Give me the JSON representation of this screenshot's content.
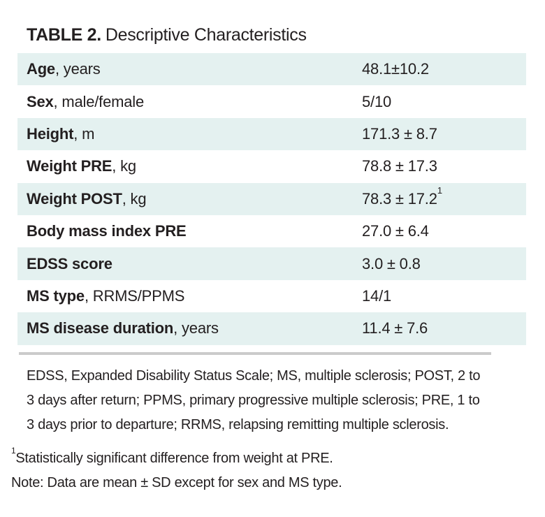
{
  "title": {
    "label": "TABLE 2.",
    "text": "Descriptive Characteristics"
  },
  "table": {
    "rows": [
      {
        "label_bold": "Age",
        "label_rest": ", years",
        "value": "48.1±10.2",
        "value_sup": ""
      },
      {
        "label_bold": "Sex",
        "label_rest": ", male/female",
        "value": "5/10",
        "value_sup": ""
      },
      {
        "label_bold": "Height",
        "label_rest": ", m",
        "value": "171.3 ± 8.7",
        "value_sup": ""
      },
      {
        "label_bold": "Weight PRE",
        "label_rest": ", kg",
        "value": "78.8 ± 17.3",
        "value_sup": ""
      },
      {
        "label_bold": "Weight POST",
        "label_rest": ", kg",
        "value": "78.3 ± 17.2",
        "value_sup": "1"
      },
      {
        "label_bold": "Body mass index PRE",
        "label_rest": "",
        "value": "27.0 ± 6.4",
        "value_sup": ""
      },
      {
        "label_bold": "EDSS score",
        "label_rest": "",
        "value": "3.0 ± 0.8",
        "value_sup": ""
      },
      {
        "label_bold": "MS type",
        "label_rest": ", RRMS/PPMS",
        "value": "14/1",
        "value_sup": ""
      },
      {
        "label_bold": "MS disease duration",
        "label_rest": ", years",
        "value": "11.4 ± 7.6",
        "value_sup": ""
      }
    ]
  },
  "footnotes": {
    "abbreviations_lines": [
      "EDSS, Expanded Disability Status Scale; MS, multiple sclerosis; POST, 2 to",
      "3 days after return; PPMS, primary progressive multiple sclerosis; PRE, 1 to",
      "3 days prior to departure; RRMS, relapsing remitting multiple sclerosis."
    ],
    "significance_sup": "1",
    "significance": "Statistically significant difference from weight at PRE.",
    "note": "Note: Data are mean ± SD except for sex and MS type."
  },
  "colors": {
    "row_highlight": "#e4f1f0",
    "text": "#231f20",
    "rule": "#cbcbcb",
    "background": "#ffffff"
  }
}
